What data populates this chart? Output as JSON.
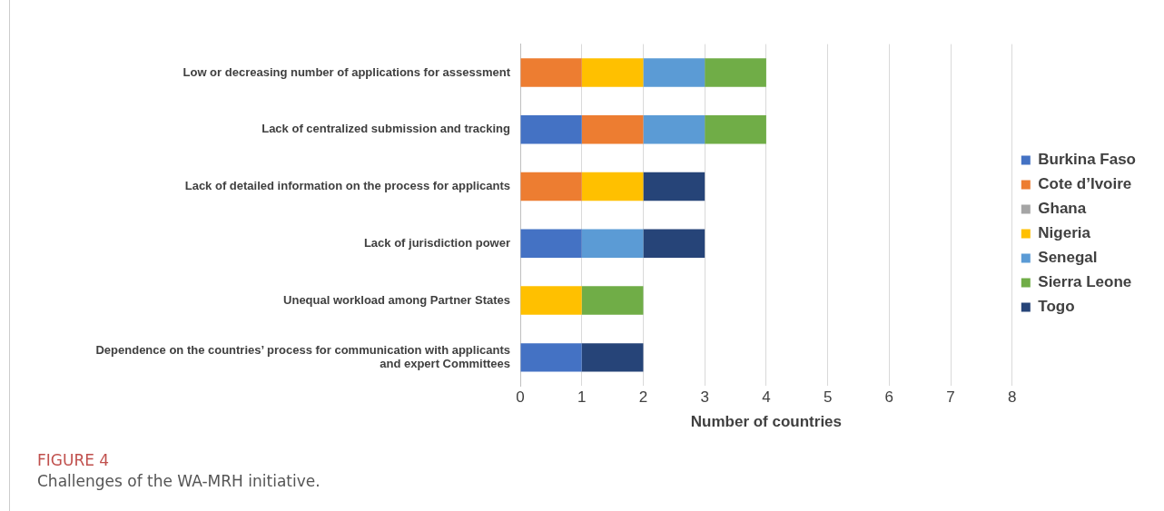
{
  "chart_data": {
    "type": "bar",
    "orientation": "horizontal",
    "stacked": true,
    "title": "FIGURE 4",
    "subtitle": "Challenges of the WA-MRH initiative.",
    "xlabel": "Number of countries",
    "categories": [
      "Low or decreasing number of applications for assessment",
      "Lack of centralized submission and tracking",
      "Lack of detailed information on the process for applicants",
      "Lack of jurisdiction power",
      "Unequal workload among Partner States",
      "Dependence on the countries’ process for communication with applicants and expert Committees"
    ],
    "series": [
      {
        "name": "Burkina Faso",
        "color": "#4472c4",
        "values": [
          null,
          1,
          null,
          1,
          null,
          1
        ]
      },
      {
        "name": "Cote d’Ivoire",
        "color": "#ed7d31",
        "values": [
          1,
          1,
          1,
          null,
          null,
          null
        ]
      },
      {
        "name": "Ghana",
        "color": "#a5a5a5",
        "values": [
          null,
          null,
          null,
          null,
          null,
          null
        ]
      },
      {
        "name": "Nigeria",
        "color": "#ffc000",
        "values": [
          1,
          null,
          1,
          null,
          1,
          null
        ]
      },
      {
        "name": "Senegal",
        "color": "#5b9bd5",
        "values": [
          1,
          1,
          null,
          1,
          null,
          null
        ]
      },
      {
        "name": "Sierra Leone",
        "color": "#70ad47",
        "values": [
          1,
          1,
          null,
          null,
          1,
          null
        ]
      },
      {
        "name": "Togo",
        "color": "#264478",
        "values": [
          null,
          null,
          1,
          1,
          null,
          1
        ]
      }
    ],
    "xlim": [
      0,
      8
    ],
    "xticks": [
      0,
      1,
      2,
      3,
      4,
      5,
      6,
      7,
      8
    ],
    "grid": "x",
    "legend": "right"
  }
}
